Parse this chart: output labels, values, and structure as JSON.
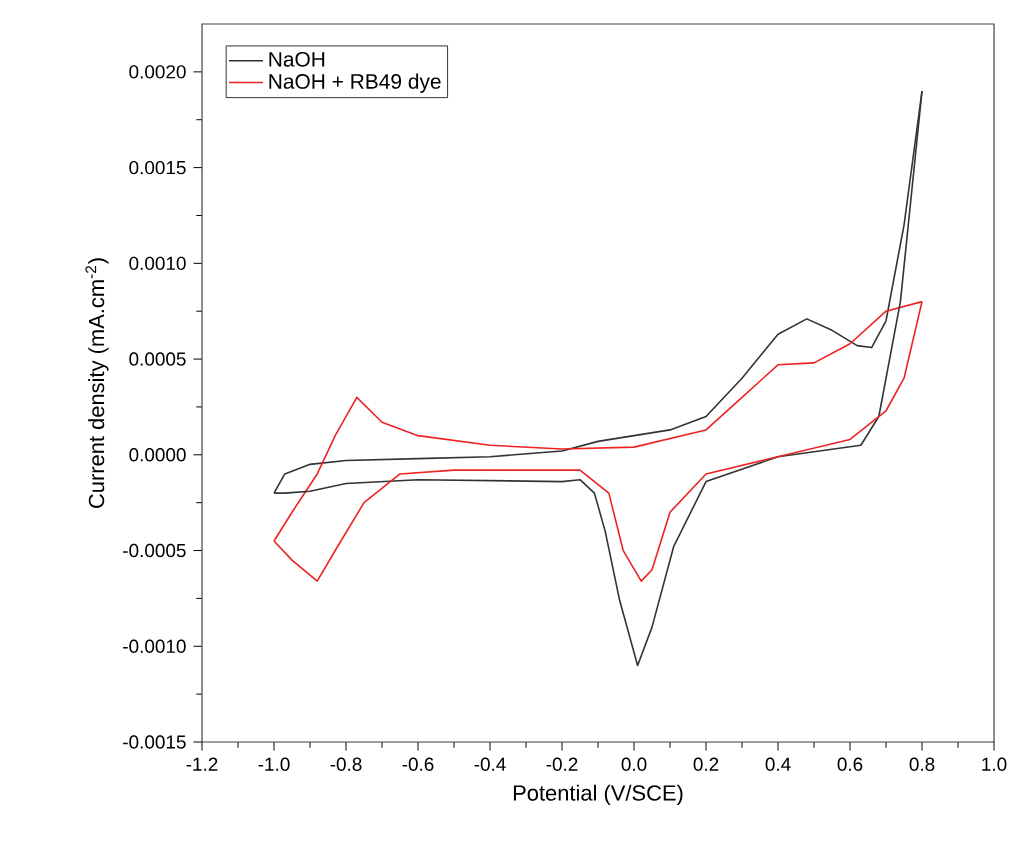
{
  "chart_data": {
    "type": "line",
    "xlabel": "Potential (V/SCE)",
    "ylabel": "Current density (mA.cm$^{-2}$)",
    "xlim": [
      -1.2,
      1.0
    ],
    "ylim": [
      -0.0015,
      0.00225
    ],
    "xticks": [
      {
        "value": -1.2,
        "label": "-1.2"
      },
      {
        "value": -1.0,
        "label": "-1.0"
      },
      {
        "value": -0.8,
        "label": "-0.8"
      },
      {
        "value": -0.6,
        "label": "-0.6"
      },
      {
        "value": -0.4,
        "label": "-0.4"
      },
      {
        "value": -0.2,
        "label": "-0.2"
      },
      {
        "value": 0.0,
        "label": "0.0"
      },
      {
        "value": 0.2,
        "label": "0.2"
      },
      {
        "value": 0.4,
        "label": "0.4"
      },
      {
        "value": 0.6,
        "label": "0.6"
      },
      {
        "value": 0.8,
        "label": "0.8"
      },
      {
        "value": 1.0,
        "label": "1.0"
      }
    ],
    "yticks": [
      {
        "value": -0.0015,
        "label": "-0.0015"
      },
      {
        "value": -0.001,
        "label": "-0.0010"
      },
      {
        "value": -0.0005,
        "label": "-0.0005"
      },
      {
        "value": 0.0,
        "label": "0.0000"
      },
      {
        "value": 0.0005,
        "label": "0.0005"
      },
      {
        "value": 0.001,
        "label": "0.0010"
      },
      {
        "value": 0.0015,
        "label": "0.0015"
      },
      {
        "value": 0.002,
        "label": "0.0020"
      }
    ],
    "legend": "top left",
    "grid": false,
    "marker": "none",
    "line_style": "solid",
    "series": [
      {
        "name": "NaOH",
        "color": "#333333",
        "x": [
          -1.0,
          -0.97,
          -0.9,
          -0.8,
          -0.6,
          -0.4,
          -0.2,
          -0.1,
          0.0,
          0.1,
          0.2,
          0.3,
          0.4,
          0.48,
          0.55,
          0.62,
          0.66,
          0.7,
          0.75,
          0.8
        ],
        "values": [
          -0.0002,
          -0.0001,
          -5e-05,
          -3e-05,
          -2e-05,
          -1e-05,
          2e-05,
          7e-05,
          0.0001,
          0.00013,
          0.0002,
          0.0004,
          0.00063,
          0.00071,
          0.00065,
          0.00057,
          0.00056,
          0.0007,
          0.0012,
          0.0019
        ]
      },
      {
        "name": "NaOH + RB49 dye",
        "color": "#ee2222",
        "x": [
          -1.0,
          -0.95,
          -0.88,
          -0.83,
          -0.77,
          -0.7,
          -0.6,
          -0.4,
          -0.2,
          0.0,
          0.2,
          0.3,
          0.4,
          0.5,
          0.6,
          0.7,
          0.8
        ],
        "values": [
          -0.00045,
          -0.0003,
          -0.0001,
          0.0001,
          0.0003,
          0.00017,
          0.0001,
          5e-05,
          3e-05,
          4e-05,
          0.00013,
          0.0003,
          0.00047,
          0.00048,
          0.00058,
          0.00075,
          0.0008
        ]
      },
      {
        "color": "#333333",
        "x": [
          0.8,
          0.74,
          0.68,
          0.63,
          0.4,
          0.2,
          0.11,
          0.05,
          0.01,
          -0.04,
          -0.08,
          -0.11,
          -0.15,
          -0.2,
          -0.6,
          -0.8,
          -0.9,
          -0.97,
          -1.0
        ],
        "values": [
          0.0019,
          0.0008,
          0.0002,
          5e-05,
          -1e-05,
          -0.00014,
          -0.00048,
          -0.0009,
          -0.0011,
          -0.00076,
          -0.0004,
          -0.0002,
          -0.00013,
          -0.00014,
          -0.00013,
          -0.00015,
          -0.00019,
          -0.0002,
          -0.0002
        ]
      },
      {
        "color": "#ee2222",
        "x": [
          0.8,
          0.75,
          0.7,
          0.6,
          0.4,
          0.2,
          0.1,
          0.05,
          0.02,
          -0.03,
          -0.07,
          -0.15,
          -0.3,
          -0.5,
          -0.65,
          -0.75,
          -0.83,
          -0.88,
          -0.95,
          -1.0
        ],
        "values": [
          0.0008,
          0.0004,
          0.00023,
          8e-05,
          -1e-05,
          -0.0001,
          -0.0003,
          -0.0006,
          -0.00066,
          -0.0005,
          -0.0002,
          -8e-05,
          -8e-05,
          -8e-05,
          -0.0001,
          -0.00025,
          -0.0005,
          -0.00066,
          -0.00055,
          -0.00045
        ]
      }
    ]
  }
}
